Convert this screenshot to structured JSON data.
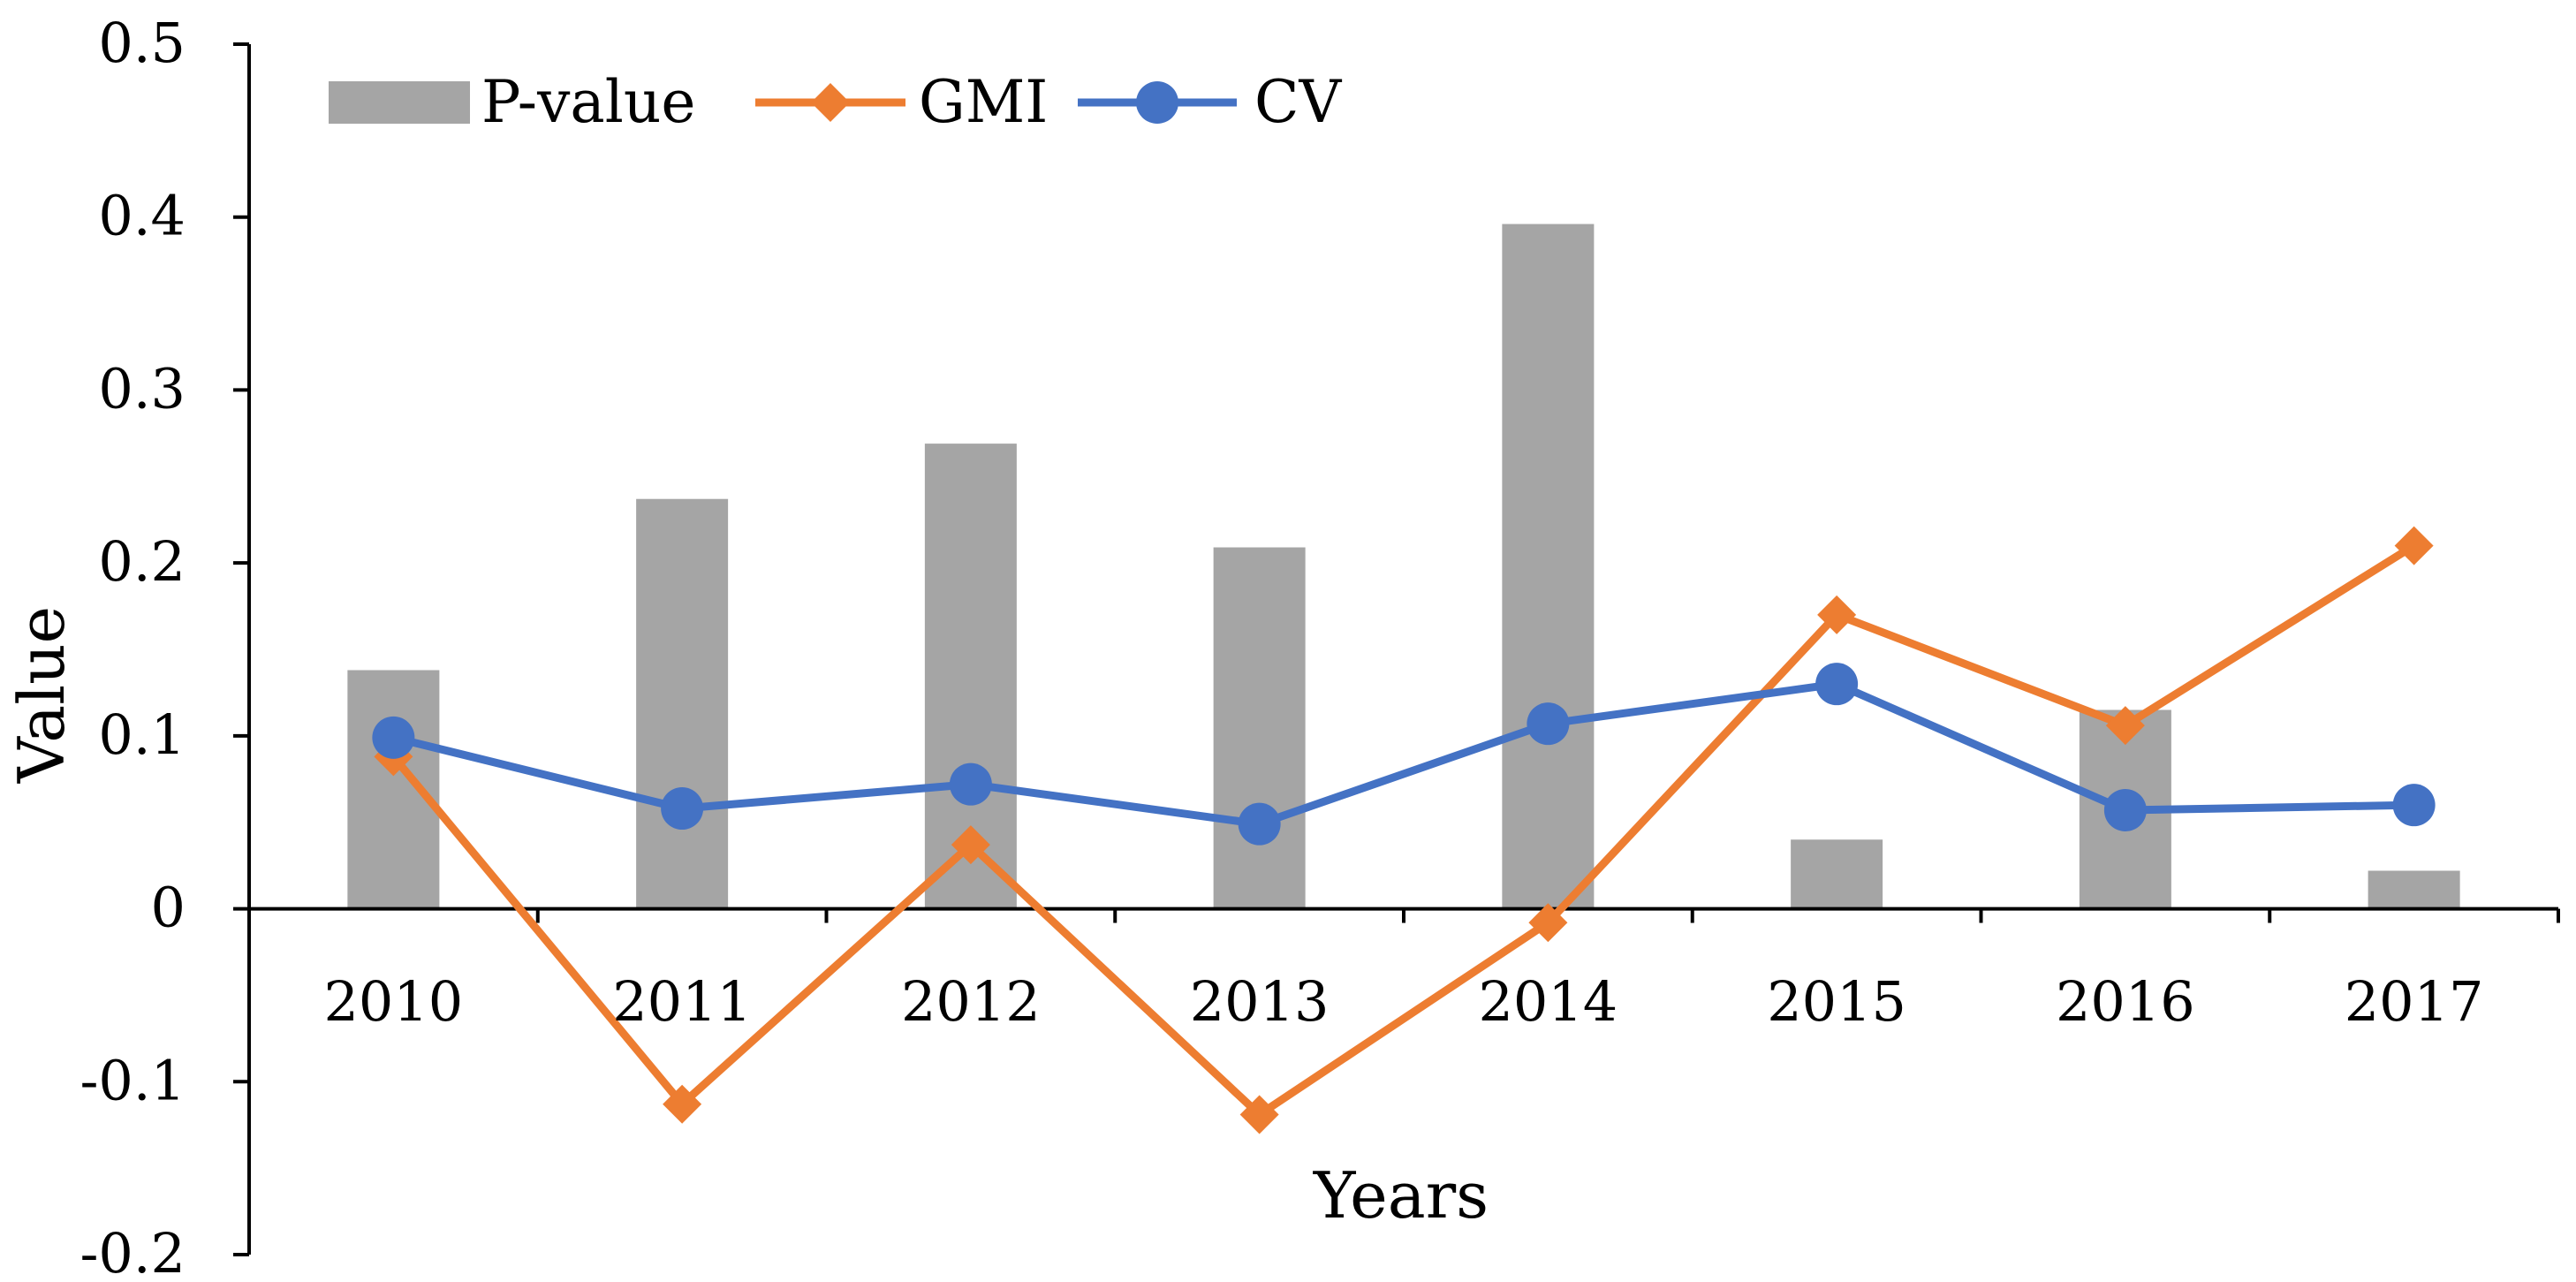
{
  "chart_data": {
    "type": "bar+line",
    "title": "",
    "xlabel": "Years",
    "ylabel": "Value",
    "ylim": [
      -0.2,
      0.5
    ],
    "ytick_step": 0.1,
    "yticks": [
      "0.5",
      "0.4",
      "0.3",
      "0.2",
      "0.1",
      "0",
      "-0.1",
      "-0.2"
    ],
    "categories": [
      "2010",
      "2011",
      "2012",
      "2013",
      "2014",
      "2015",
      "2016",
      "2017"
    ],
    "legend_position": "top-left",
    "grid": false,
    "series": [
      {
        "name": "P-value",
        "kind": "bar",
        "color": "#a5a5a5",
        "values": [
          0.138,
          0.237,
          0.269,
          0.209,
          0.396,
          0.04,
          0.115,
          0.022
        ]
      },
      {
        "name": "GMI",
        "kind": "line",
        "marker": "diamond",
        "color": "#ed7d31",
        "values": [
          0.088,
          -0.113,
          0.037,
          -0.119,
          -0.008,
          0.17,
          0.106,
          0.21
        ]
      },
      {
        "name": "CV",
        "kind": "line",
        "marker": "circle",
        "color": "#4472c4",
        "values": [
          0.099,
          0.058,
          0.072,
          0.049,
          0.107,
          0.13,
          0.057,
          0.06
        ]
      }
    ]
  }
}
